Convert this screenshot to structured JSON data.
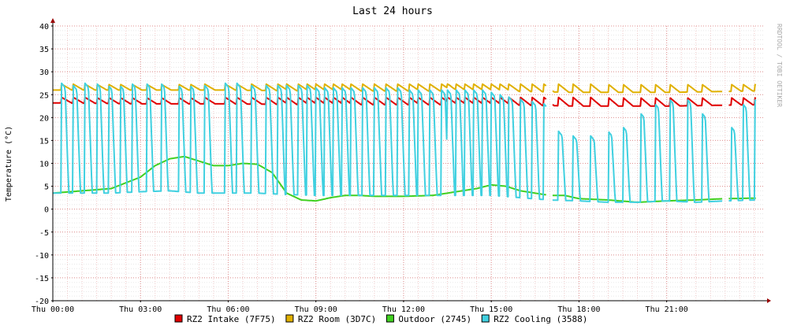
{
  "chart_data": {
    "type": "line",
    "title": "Last 24 hours",
    "ylabel": "Temperature (°C)",
    "watermark": "RRDTOOL / TOBI OETIKER",
    "ylim": [
      -20,
      40
    ],
    "y_ticks": [
      -20,
      -15,
      -10,
      -5,
      0,
      5,
      10,
      15,
      20,
      25,
      30,
      35,
      40
    ],
    "xlim_hours": [
      0,
      24.3
    ],
    "x_ticks": [
      {
        "hour": 0,
        "label": "Thu 00:00"
      },
      {
        "hour": 3,
        "label": "Thu 03:00"
      },
      {
        "hour": 6,
        "label": "Thu 06:00"
      },
      {
        "hour": 9,
        "label": "Thu 09:00"
      },
      {
        "hour": 12,
        "label": "Thu 12:00"
      },
      {
        "hour": 15,
        "label": "Thu 15:00"
      },
      {
        "hour": 18,
        "label": "Thu 18:00"
      },
      {
        "hour": 21,
        "label": "Thu 21:00"
      }
    ],
    "grid": true,
    "legend_position": "bottom",
    "series": [
      {
        "name": "RZ2 Intake (7F75)",
        "color": "#e00000",
        "base": [
          [
            0,
            23.2
          ],
          [
            3,
            23.0
          ],
          [
            6,
            23.0
          ],
          [
            9,
            22.8
          ],
          [
            12,
            22.8
          ],
          [
            15,
            22.8
          ],
          [
            18,
            22.5
          ],
          [
            21,
            22.5
          ],
          [
            24,
            22.8
          ]
        ],
        "spikes": [
          0.3,
          0.7,
          1.1,
          1.5,
          1.9,
          2.3,
          2.7,
          3.2,
          3.7,
          4.3,
          4.7,
          5.2,
          5.9,
          6.3,
          6.8,
          7.3,
          7.7,
          8.0,
          8.4,
          8.7,
          9.0,
          9.3,
          9.6,
          9.9,
          10.2,
          10.6,
          11.0,
          11.4,
          11.8,
          12.2,
          12.5,
          12.9,
          13.3,
          13.5,
          13.8,
          14.1,
          14.4,
          14.7,
          15.0,
          15.3,
          15.6,
          16.0,
          16.4,
          16.8,
          17.3,
          17.8,
          18.4,
          19.0,
          19.5,
          20.1,
          20.6,
          21.1,
          21.7,
          22.2,
          23.2,
          23.6,
          24.0
        ],
        "peak": 24.4,
        "gaps": [
          [
            16.9,
            17.1
          ],
          [
            22.9,
            23.1
          ]
        ]
      },
      {
        "name": "RZ2 Room (3D7C)",
        "color": "#e0b000",
        "base": [
          [
            0,
            26.0
          ],
          [
            3,
            26.0
          ],
          [
            6,
            26.0
          ],
          [
            9,
            25.8
          ],
          [
            12,
            25.8
          ],
          [
            15,
            25.8
          ],
          [
            18,
            25.5
          ],
          [
            21,
            25.5
          ],
          [
            24,
            25.8
          ]
        ],
        "spikes": [
          0.3,
          0.7,
          1.1,
          1.5,
          1.9,
          2.3,
          2.7,
          3.2,
          3.7,
          4.3,
          4.7,
          5.2,
          5.9,
          6.3,
          6.8,
          7.3,
          7.7,
          8.0,
          8.4,
          8.7,
          9.0,
          9.3,
          9.6,
          9.9,
          10.2,
          10.6,
          11.0,
          11.4,
          11.8,
          12.2,
          12.5,
          12.9,
          13.3,
          13.5,
          13.8,
          14.1,
          14.4,
          14.7,
          15.0,
          15.3,
          15.6,
          16.0,
          16.4,
          16.8,
          17.3,
          17.8,
          18.4,
          19.0,
          19.5,
          20.1,
          20.6,
          21.1,
          21.7,
          22.2,
          23.2,
          23.6,
          24.0
        ],
        "peak": 27.3,
        "gaps": [
          [
            16.9,
            17.1
          ],
          [
            22.9,
            23.1
          ]
        ]
      },
      {
        "name": "Outdoor (2745)",
        "color": "#40d020",
        "base": [
          [
            0,
            3.5
          ],
          [
            1.0,
            4.0
          ],
          [
            2.0,
            4.5
          ],
          [
            3.0,
            7.0
          ],
          [
            3.5,
            9.5
          ],
          [
            4.0,
            11.0
          ],
          [
            4.5,
            11.5
          ],
          [
            5.0,
            10.5
          ],
          [
            5.5,
            9.5
          ],
          [
            6.0,
            9.5
          ],
          [
            6.5,
            10.0
          ],
          [
            7.0,
            9.8
          ],
          [
            7.5,
            8.0
          ],
          [
            8.0,
            3.5
          ],
          [
            8.5,
            2.0
          ],
          [
            9.0,
            1.8
          ],
          [
            9.5,
            2.5
          ],
          [
            10.0,
            3.0
          ],
          [
            10.5,
            3.0
          ],
          [
            11.0,
            2.8
          ],
          [
            12.0,
            2.8
          ],
          [
            13.0,
            3.0
          ],
          [
            13.5,
            3.5
          ],
          [
            14.0,
            4.0
          ],
          [
            14.5,
            4.5
          ],
          [
            15.0,
            5.3
          ],
          [
            15.5,
            5.0
          ],
          [
            16.0,
            4.0
          ],
          [
            16.5,
            3.5
          ],
          [
            17.0,
            3.0
          ],
          [
            17.5,
            3.0
          ],
          [
            18.0,
            2.3
          ],
          [
            19.0,
            2.0
          ],
          [
            20.0,
            1.5
          ],
          [
            21.0,
            1.8
          ],
          [
            22.0,
            2.0
          ],
          [
            23.0,
            2.3
          ],
          [
            24.0,
            2.4
          ]
        ],
        "gaps": [
          [
            16.9,
            17.1
          ],
          [
            22.9,
            23.1
          ]
        ]
      },
      {
        "name": "RZ2 Cooling (3588)",
        "color": "#40d0e0",
        "base": [
          [
            0,
            3.5
          ],
          [
            2.0,
            3.5
          ],
          [
            3.0,
            3.8
          ],
          [
            4.0,
            4.0
          ],
          [
            5.0,
            3.5
          ],
          [
            6.0,
            3.5
          ],
          [
            7.0,
            3.5
          ],
          [
            8.0,
            3.2
          ],
          [
            9.0,
            3.0
          ],
          [
            10.0,
            3.0
          ],
          [
            12.0,
            3.0
          ],
          [
            14.0,
            3.0
          ],
          [
            15.0,
            3.0
          ],
          [
            16.0,
            2.5
          ],
          [
            17.0,
            2.0
          ],
          [
            18.0,
            1.8
          ],
          [
            19.0,
            1.5
          ],
          [
            20.0,
            1.5
          ],
          [
            21.0,
            1.8
          ],
          [
            22.0,
            1.5
          ],
          [
            23.0,
            1.8
          ],
          [
            24.0,
            2.0
          ]
        ],
        "spikes": [
          0.3,
          0.7,
          1.1,
          1.5,
          1.9,
          2.3,
          2.7,
          3.2,
          3.7,
          4.3,
          4.7,
          5.2,
          5.9,
          6.3,
          6.8,
          7.3,
          7.7,
          8.0,
          8.4,
          8.7,
          9.0,
          9.3,
          9.6,
          9.9,
          10.2,
          10.6,
          11.0,
          11.4,
          11.8,
          12.2,
          12.5,
          12.9,
          13.3,
          13.5,
          13.8,
          14.1,
          14.4,
          14.7,
          15.0,
          15.3,
          15.6,
          16.0,
          16.4,
          16.8,
          17.3,
          17.8,
          18.4,
          19.0,
          19.5,
          20.1,
          20.6,
          21.1,
          21.7,
          22.2,
          23.2,
          23.6,
          24.0
        ],
        "peaks": [
          27.5,
          27.0,
          27.5,
          27.5,
          27.0,
          27.0,
          27.5,
          27.5,
          27.5,
          27.0,
          27.0,
          27.0,
          27.5,
          27.5,
          27.0,
          27.0,
          27.0,
          27.0,
          27.0,
          27.0,
          26.5,
          26.5,
          26.5,
          26.5,
          26.5,
          26.5,
          26.5,
          26.5,
          26.5,
          26.0,
          26.0,
          26.0,
          26.0,
          26.0,
          26.0,
          26.0,
          26.0,
          26.0,
          25.5,
          25.0,
          24.5,
          24.0,
          23.5,
          23.0,
          17.0,
          16.0,
          16.0,
          17.0,
          18.0,
          21.0,
          23.0,
          24.0,
          24.0,
          21.0,
          18.0,
          23.0,
          24.0
        ],
        "gaps": [
          [
            16.9,
            17.1
          ],
          [
            22.9,
            23.1
          ]
        ]
      }
    ]
  }
}
